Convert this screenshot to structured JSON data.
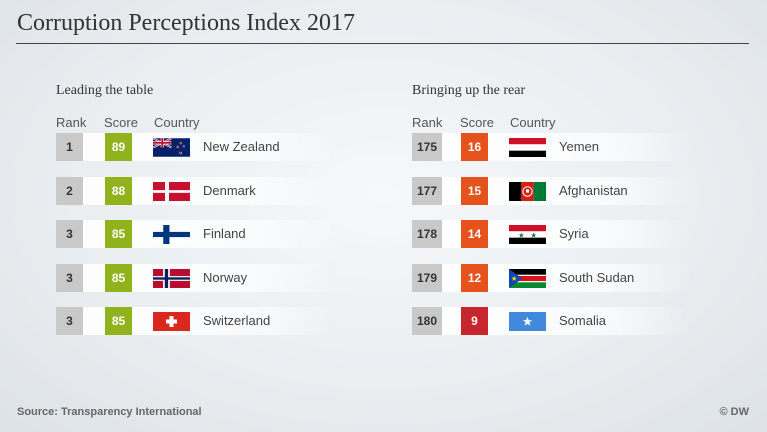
{
  "title": "Corruption Perceptions Index 2017",
  "footer": {
    "source": "Source: Transparency International",
    "copyright": "© DW"
  },
  "columns": {
    "rank": "Rank",
    "score": "Score",
    "country": "Country"
  },
  "chart_data": {
    "type": "table",
    "title": "Corruption Perceptions Index 2017",
    "sections": [
      {
        "label": "Leading the table",
        "rows": [
          {
            "rank": "1",
            "score": "89",
            "country": "New Zealand",
            "flag": "new-zealand",
            "score_color": "#8fb21d"
          },
          {
            "rank": "2",
            "score": "88",
            "country": "Denmark",
            "flag": "denmark",
            "score_color": "#8fb21d"
          },
          {
            "rank": "3",
            "score": "85",
            "country": "Finland",
            "flag": "finland",
            "score_color": "#8fb21d"
          },
          {
            "rank": "3",
            "score": "85",
            "country": "Norway",
            "flag": "norway",
            "score_color": "#8fb21d"
          },
          {
            "rank": "3",
            "score": "85",
            "country": "Switzerland",
            "flag": "switzerland",
            "score_color": "#8fb21d"
          }
        ]
      },
      {
        "label": "Bringing up the rear",
        "rows": [
          {
            "rank": "175",
            "score": "16",
            "country": "Yemen",
            "flag": "yemen",
            "score_color": "#e6521b"
          },
          {
            "rank": "177",
            "score": "15",
            "country": "Afghanistan",
            "flag": "afghanistan",
            "score_color": "#e6521b"
          },
          {
            "rank": "178",
            "score": "14",
            "country": "Syria",
            "flag": "syria",
            "score_color": "#e6521b"
          },
          {
            "rank": "179",
            "score": "12",
            "country": "South Sudan",
            "flag": "south-sudan",
            "score_color": "#e6521b"
          },
          {
            "rank": "180",
            "score": "9",
            "country": "Somalia",
            "flag": "somalia",
            "score_color": "#c8262e"
          }
        ]
      }
    ]
  }
}
